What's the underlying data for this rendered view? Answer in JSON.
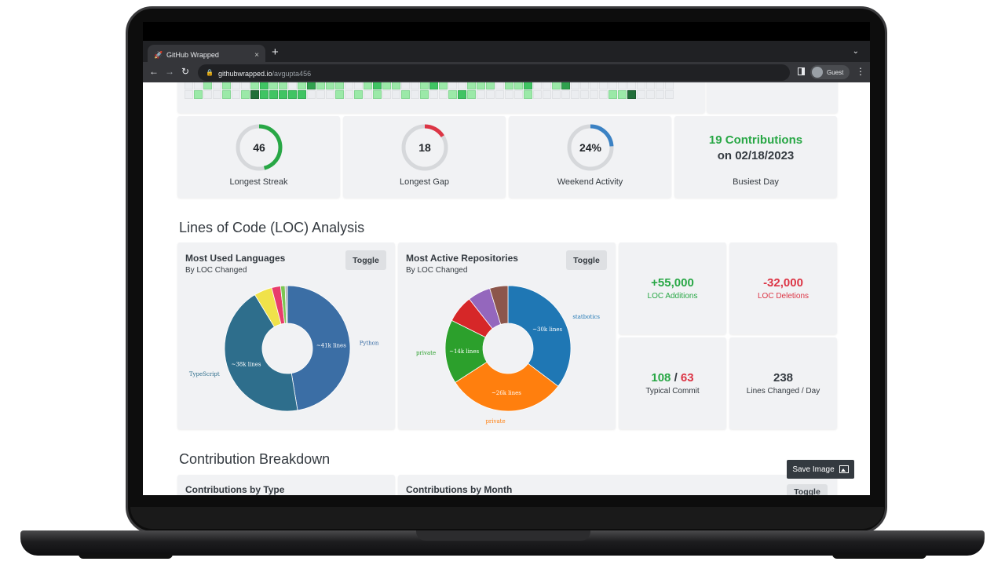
{
  "browser": {
    "tab_title": "GitHub Wrapped",
    "tab_close": "×",
    "new_tab": "+",
    "tab_menu": "⌄",
    "url_host": "githubwrapped.io",
    "url_path": "/avgupta456",
    "profile_label": "Guest",
    "back": "←",
    "forward": "→",
    "reload": "↻",
    "menu": "⋮"
  },
  "heatmap": {
    "levels": [
      [
        0,
        0,
        1,
        0,
        1,
        0,
        0,
        1,
        2,
        1,
        1,
        0,
        1,
        3,
        1,
        1,
        1,
        0,
        0,
        1,
        2,
        1,
        1,
        0,
        0,
        1,
        2,
        1,
        0,
        0,
        1,
        1,
        1,
        0,
        1,
        1,
        2,
        0,
        0,
        1,
        3,
        0,
        0,
        0,
        0,
        0,
        0,
        0,
        0,
        0,
        0,
        0
      ],
      [
        0,
        1,
        0,
        0,
        1,
        0,
        1,
        4,
        2,
        2,
        2,
        2,
        2,
        0,
        0,
        0,
        1,
        0,
        1,
        0,
        1,
        0,
        0,
        1,
        0,
        1,
        0,
        0,
        1,
        2,
        1,
        0,
        0,
        0,
        0,
        0,
        1,
        0,
        0,
        0,
        0,
        0,
        0,
        0,
        0,
        1,
        1,
        4,
        0,
        0,
        0,
        0
      ]
    ]
  },
  "stats": [
    {
      "value": "46",
      "label": "Longest Streak",
      "ring_color": "#28a745",
      "fraction": 0.46
    },
    {
      "value": "18",
      "label": "Longest Gap",
      "ring_color": "#dc3545",
      "fraction": 0.16
    },
    {
      "value": "24%",
      "label": "Weekend Activity",
      "ring_color": "#3b82c4",
      "fraction": 0.24
    }
  ],
  "busiest": {
    "line1": "19 Contributions",
    "line2": "on 02/18/2023",
    "label": "Busiest Day"
  },
  "loc_section_title": "Lines of Code (LOC) Analysis",
  "languages_card": {
    "title": "Most Used Languages",
    "subtitle": "By LOC Changed",
    "toggle": "Toggle",
    "slices": [
      {
        "name": "Python",
        "label": "~41k lines",
        "value": 41,
        "color": "#3b6ea5"
      },
      {
        "name": "TypeScript",
        "label": "~38k lines",
        "value": 38,
        "color": "#2e6e8c"
      },
      {
        "name": "",
        "label": "",
        "value": 4,
        "color": "#f0e24a"
      },
      {
        "name": "",
        "label": "",
        "value": 2,
        "color": "#e83d6b"
      },
      {
        "name": "",
        "label": "",
        "value": 1,
        "color": "#7cc653"
      },
      {
        "name": "",
        "label": "",
        "value": 0.5,
        "color": "#b0b0b0"
      }
    ]
  },
  "repos_card": {
    "title": "Most Active Repositories",
    "subtitle": "By LOC Changed",
    "toggle": "Toggle",
    "slices": [
      {
        "name": "statbotics",
        "label": "~30k lines",
        "value": 30,
        "color": "#1f77b4"
      },
      {
        "name": "private",
        "label": "~26k lines",
        "value": 26,
        "color": "#ff7f0e"
      },
      {
        "name": "private",
        "label": "~14k lines",
        "value": 14,
        "color": "#2ca02c"
      },
      {
        "name": "",
        "label": "",
        "value": 6,
        "color": "#d62728"
      },
      {
        "name": "",
        "label": "",
        "value": 5,
        "color": "#9467bd"
      },
      {
        "name": "",
        "label": "",
        "value": 4,
        "color": "#8c564b"
      }
    ]
  },
  "loc_stats": {
    "additions_value": "+55,000",
    "additions_label": "LOC Additions",
    "deletions_value": "-32,000",
    "deletions_label": "LOC Deletions",
    "commit_add": "108",
    "commit_sep": " / ",
    "commit_del": "63",
    "commit_label": "Typical Commit",
    "per_day_value": "238",
    "per_day_label": "Lines Changed / Day"
  },
  "breakdown_section_title": "Contribution Breakdown",
  "breakdown": {
    "by_type_title": "Contributions by Type",
    "by_month_title": "Contributions by Month",
    "toggle": "Toggle",
    "save_image": "Save Image"
  },
  "colors": {
    "positive": "#28a745",
    "negative": "#dc3545",
    "card_bg": "#f1f2f4"
  }
}
